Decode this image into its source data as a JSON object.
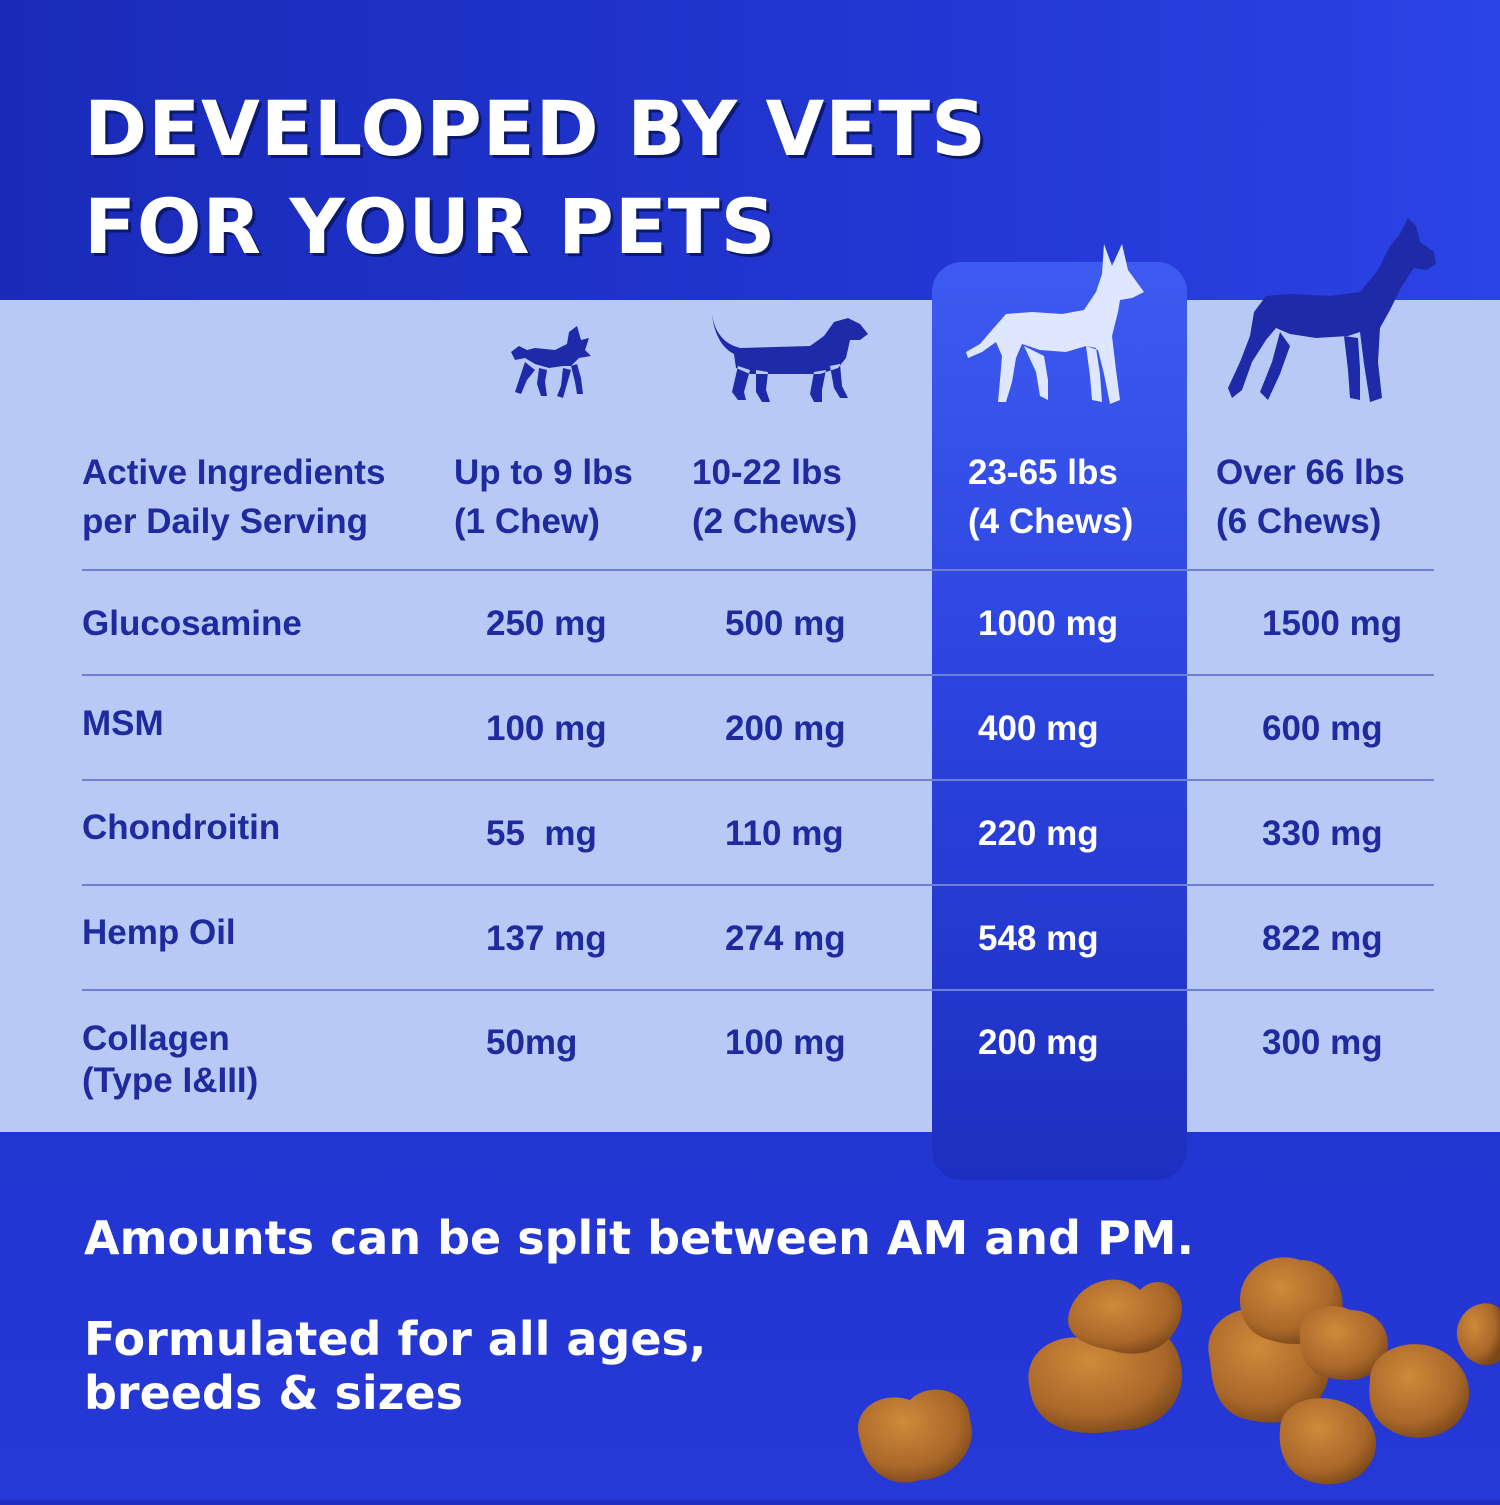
{
  "title": {
    "line1": "DEVELOPED BY VETS",
    "line2": "FOR YOUR PETS"
  },
  "table": {
    "header_label": {
      "line1": "Active Ingredients",
      "line2": "per Daily Serving"
    },
    "columns": [
      {
        "weight": "Up to 9 lbs",
        "chews": "(1 Chew)",
        "icon": "small-dog-icon"
      },
      {
        "weight": "10-22 lbs",
        "chews": "(2 Chews)",
        "icon": "dachshund-icon"
      },
      {
        "weight": "23-65 lbs",
        "chews": "(4 Chews)",
        "icon": "shepherd-dog-icon",
        "highlighted": true
      },
      {
        "weight": "Over 66 lbs",
        "chews": "(6 Chews)",
        "icon": "large-dog-icon"
      }
    ],
    "rows": [
      {
        "name": "Glucosamine",
        "values": [
          "250 mg",
          "500 mg",
          "1000 mg",
          "1500 mg"
        ]
      },
      {
        "name": "MSM",
        "values": [
          "100 mg",
          "200 mg",
          "400 mg",
          "600 mg"
        ]
      },
      {
        "name": "Chondroitin",
        "values": [
          "55  mg",
          "110 mg",
          "220 mg",
          "330 mg"
        ]
      },
      {
        "name": "Hemp Oil",
        "values": [
          "137 mg",
          "274 mg",
          "548 mg",
          "822 mg"
        ]
      },
      {
        "name": "Collagen",
        "name_line2": "(Type I&III)",
        "values": [
          "50mg",
          "100 mg",
          "200 mg",
          "300 mg"
        ]
      }
    ]
  },
  "notes": {
    "split": "Amounts can be split between AM and PM.",
    "formulated_line1": "Formulated for all ages,",
    "formulated_line2": "breeds & sizes"
  },
  "colors": {
    "header_bg": "#1a2bb8",
    "table_bg": "#b9c9f5",
    "text_dark": "#1f2a9e",
    "highlight": "#2c44e0",
    "chew": "#b5742f"
  }
}
